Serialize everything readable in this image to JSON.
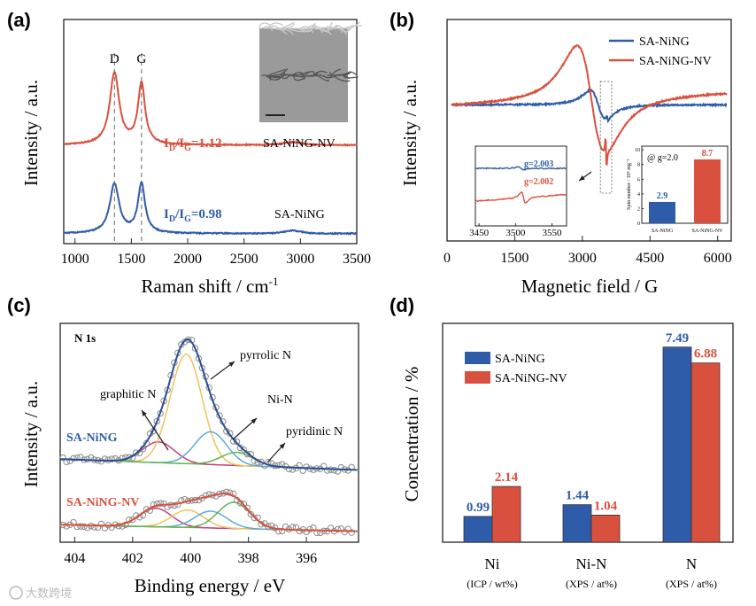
{
  "watermark": "大数跨境",
  "colors": {
    "blue": "#2f5ca8",
    "red": "#d9513e",
    "yellow": "#f0c25e",
    "magenta": "#c9407e",
    "lightblue": "#5aaada",
    "green": "#62b54f",
    "gray": "#8a8a8a"
  },
  "chart_data": [
    {
      "id": "a",
      "type": "line",
      "panel_label": "(a)",
      "xlabel": "Raman shift / cm",
      "xlabel_sup": "-1",
      "ylabel": "Intensity / a.u.",
      "xlim": [
        900,
        3500
      ],
      "ylim": [
        0,
        10
      ],
      "xticks": [
        1000,
        1500,
        2000,
        2500,
        3000,
        3500
      ],
      "peak_labels": [
        {
          "text": "D",
          "x": 1350
        },
        {
          "text": "G",
          "x": 1590
        }
      ],
      "series": [
        {
          "name": "SA-NiNG-NV",
          "color": "red",
          "baseline": 4.4,
          "peaks": [
            {
              "x": 1350,
              "hw": 50,
              "h": 3.2
            },
            {
              "x": 1590,
              "hw": 38,
              "h": 2.7
            }
          ],
          "ratio_label": {
            "main": "I",
            "sub1": "D",
            "mid": "/I",
            "sub2": "G",
            "value": "=1.12"
          }
        },
        {
          "name": "SA-NiNG",
          "color": "blue",
          "baseline": 0.45,
          "peaks": [
            {
              "x": 1350,
              "hw": 50,
              "h": 2.2
            },
            {
              "x": 1590,
              "hw": 38,
              "h": 2.2
            }
          ],
          "ratio_label": {
            "main": "I",
            "sub1": "D",
            "mid": "/I",
            "sub2": "G",
            "value": "=0.98"
          }
        }
      ]
    },
    {
      "id": "b",
      "type": "line",
      "panel_label": "(b)",
      "xlabel": "Magnetic field / G",
      "ylabel": "Intensity / a.u.",
      "xlim": [
        0,
        6300
      ],
      "ylim": [
        -10,
        10
      ],
      "xticks": [
        0,
        1500,
        3000,
        4500,
        6000
      ],
      "legend": [
        "SA-NiNG",
        "SA-NiNG-NV"
      ],
      "legend_position": "top-right",
      "series": [
        {
          "name": "SA-NiNG",
          "color": "blue",
          "base_start": 2.3,
          "base_end": 2.3,
          "center": 3350,
          "width": 300,
          "amp": 4.0
        },
        {
          "name": "SA-NiNG-NV",
          "color": "red",
          "base_start": 2.2,
          "base_end": 3.4,
          "center": 3200,
          "width": 550,
          "amp": 15.0
        }
      ],
      "zoom_window": [
        3400,
        3650
      ],
      "inset_spectrum": {
        "xlim": [
          3445,
          3570
        ],
        "xticks": [
          3450,
          3500,
          3550
        ],
        "labels": [
          {
            "text": "g=2.003",
            "color": "blue"
          },
          {
            "text": "g=2.002",
            "color": "red"
          }
        ]
      },
      "inset_bar": {
        "type": "bar",
        "title": "@ g=2.0",
        "ylabel": "Spin number / 10⁵ mg⁻¹",
        "ylim": [
          0,
          10.5
        ],
        "yticks": [
          0,
          2,
          4,
          6,
          8,
          10
        ],
        "categories": [
          "SA-NiNG",
          "SA-NiNG-NV"
        ],
        "values": [
          2.9,
          8.7
        ],
        "value_labels": [
          "2.9",
          "8.7"
        ]
      }
    },
    {
      "id": "c",
      "type": "line",
      "panel_label": "(c)",
      "xlabel": "Binding energy / eV",
      "ylabel": "Intensity / a.u.",
      "title": "N 1s",
      "xlim": [
        404.5,
        394.2
      ],
      "ylim": [
        0,
        100
      ],
      "xticks": [
        404,
        402,
        400,
        398,
        396
      ],
      "component_labels": [
        "pyrrolic N",
        "graphitic N",
        "Ni-N",
        "pyridinic N"
      ],
      "series": [
        {
          "name": "SA-NiNG",
          "color": "blue",
          "baseline": [
            38,
            33
          ],
          "components": [
            {
              "name": "graphitic N",
              "color": "magenta",
              "x": 401.1,
              "h": 9.5
            },
            {
              "name": "pyrrolic N",
              "color": "yellow",
              "x": 400.15,
              "h": 50
            },
            {
              "name": "Ni-N",
              "color": "lightblue",
              "x": 399.3,
              "h": 15
            },
            {
              "name": "pyridinic N",
              "color": "green",
              "x": 398.4,
              "h": 6
            }
          ]
        },
        {
          "name": "SA-NiNG-NV",
          "color": "red",
          "baseline": [
            8,
            5
          ],
          "components": [
            {
              "name": "graphitic N",
              "color": "magenta",
              "x": 401.2,
              "h": 8.5
            },
            {
              "name": "pyrrolic N",
              "color": "yellow",
              "x": 400.1,
              "h": 8
            },
            {
              "name": "Ni-N",
              "color": "lightblue",
              "x": 399.3,
              "h": 7.7
            },
            {
              "name": "pyridinic N",
              "color": "green",
              "x": 398.5,
              "h": 12
            }
          ]
        }
      ]
    },
    {
      "id": "d",
      "type": "bar",
      "panel_label": "(d)",
      "ylabel": "Concentration / %",
      "ylim": [
        0,
        8.4
      ],
      "categories": [
        "Ni",
        "Ni-N",
        "N"
      ],
      "category_sublabels": [
        "(ICP / wt%)",
        "(XPS / at%)",
        "(XPS / at%)"
      ],
      "legend_position": "top-left",
      "series": [
        {
          "name": "SA-NiNG",
          "color": "blue",
          "values": [
            0.99,
            1.44,
            7.49
          ],
          "labels": [
            "0.99",
            "1.44",
            "7.49"
          ]
        },
        {
          "name": "SA-NiNG-NV",
          "color": "red",
          "values": [
            2.14,
            1.04,
            6.88
          ],
          "labels": [
            "2.14",
            "1.04",
            "6.88"
          ]
        }
      ]
    }
  ]
}
